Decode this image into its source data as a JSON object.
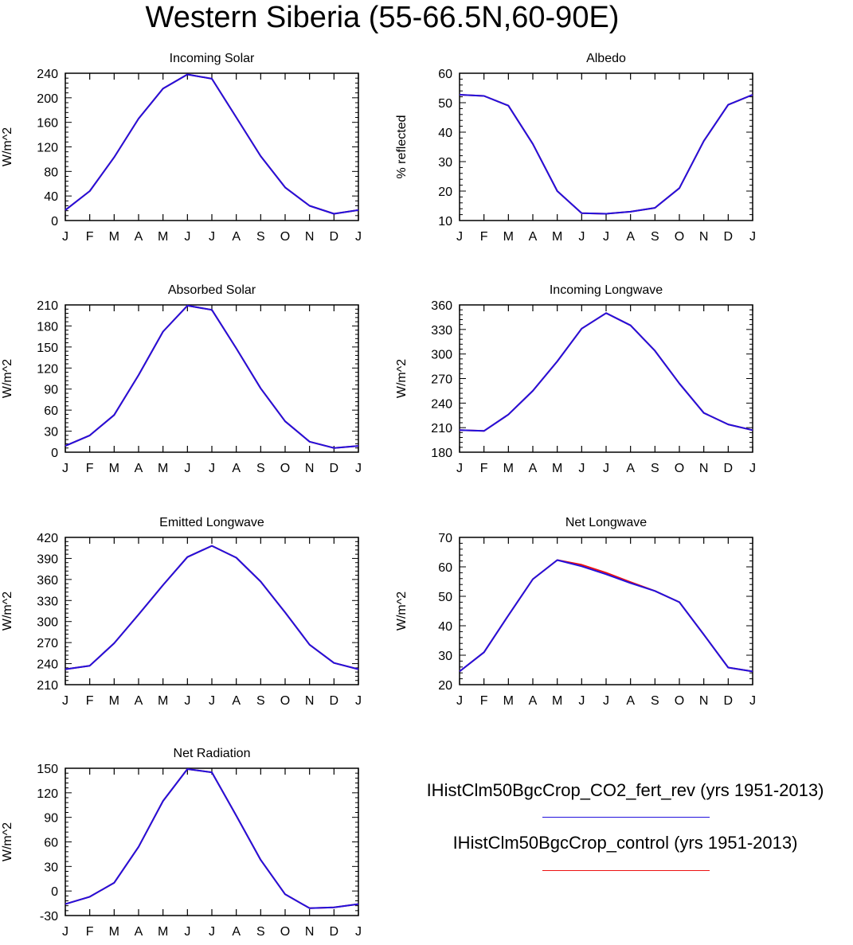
{
  "title": "Western Siberia (55-66.5N,60-90E)",
  "months": [
    "J",
    "F",
    "M",
    "A",
    "M",
    "J",
    "J",
    "A",
    "S",
    "O",
    "N",
    "D",
    "J"
  ],
  "colors": {
    "rev": "#2211dd",
    "control": "#ee1111"
  },
  "legend": [
    {
      "label": "IHistClm50BgcCrop_CO2_fert_rev (yrs 1951-2013)",
      "color": "#2211dd"
    },
    {
      "label": "IHistClm50BgcCrop_control (yrs 1951-2013)",
      "color": "#ee1111"
    }
  ],
  "chart_data": [
    {
      "type": "line",
      "title": "Incoming Solar",
      "ylabel": "W/m^2",
      "ylim": [
        0,
        240
      ],
      "yticks": [
        0,
        40,
        80,
        120,
        160,
        200,
        240
      ],
      "series": [
        {
          "name": "IHistClm50BgcCrop_CO2_fert_rev (yrs 1951-2013)",
          "values": [
            17,
            48,
            103,
            166,
            215,
            238,
            231,
            168,
            105,
            54,
            24,
            11,
            17
          ]
        },
        {
          "name": "IHistClm50BgcCrop_control (yrs 1951-2013)",
          "values": [
            17,
            48,
            103,
            166,
            215,
            238,
            231,
            168,
            105,
            54,
            24,
            11,
            17
          ]
        }
      ]
    },
    {
      "type": "line",
      "title": "Albedo",
      "ylabel": "% reflected",
      "ylim": [
        10,
        60
      ],
      "yticks": [
        10,
        20,
        30,
        40,
        50,
        60
      ],
      "series": [
        {
          "name": "IHistClm50BgcCrop_CO2_fert_rev (yrs 1951-2013)",
          "values": [
            52.7,
            52.3,
            49,
            36,
            20,
            12.5,
            12.3,
            13,
            14.3,
            21,
            37,
            49.3,
            52.7
          ]
        },
        {
          "name": "IHistClm50BgcCrop_control (yrs 1951-2013)",
          "values": [
            52.7,
            52.3,
            49,
            36,
            20,
            12.5,
            12.3,
            13,
            14.3,
            21,
            37,
            49.3,
            52.7
          ]
        }
      ]
    },
    {
      "type": "line",
      "title": "Absorbed Solar",
      "ylabel": "W/m^2",
      "ylim": [
        0,
        210
      ],
      "yticks": [
        0,
        30,
        60,
        90,
        120,
        150,
        180,
        210
      ],
      "series": [
        {
          "name": "IHistClm50BgcCrop_CO2_fert_rev (yrs 1951-2013)",
          "values": [
            9,
            24,
            53,
            110,
            172,
            209,
            203,
            148,
            91,
            44,
            15,
            6,
            9
          ]
        },
        {
          "name": "IHistClm50BgcCrop_control (yrs 1951-2013)",
          "values": [
            9,
            24,
            53,
            110,
            172,
            209,
            203,
            148,
            91,
            44,
            15,
            6,
            9
          ]
        }
      ]
    },
    {
      "type": "line",
      "title": "Incoming Longwave",
      "ylabel": "W/m^2",
      "ylim": [
        180,
        360
      ],
      "yticks": [
        180,
        210,
        240,
        270,
        300,
        330,
        360
      ],
      "series": [
        {
          "name": "IHistClm50BgcCrop_CO2_fert_rev (yrs 1951-2013)",
          "values": [
            207,
            206,
            226,
            255,
            291,
            331,
            350,
            335,
            304,
            264,
            228,
            214,
            207
          ]
        },
        {
          "name": "IHistClm50BgcCrop_control (yrs 1951-2013)",
          "values": [
            207,
            206,
            226,
            255,
            291,
            331,
            350,
            335,
            304,
            264,
            228,
            214,
            207
          ]
        }
      ]
    },
    {
      "type": "line",
      "title": "Emitted Longwave",
      "ylabel": "W/m^2",
      "ylim": [
        210,
        420
      ],
      "yticks": [
        210,
        240,
        270,
        300,
        330,
        360,
        390,
        420
      ],
      "series": [
        {
          "name": "IHistClm50BgcCrop_CO2_fert_rev (yrs 1951-2013)",
          "values": [
            232,
            237,
            269,
            310,
            352,
            392,
            408,
            391,
            357,
            313,
            267,
            241,
            232
          ]
        },
        {
          "name": "IHistClm50BgcCrop_control (yrs 1951-2013)",
          "values": [
            232,
            237,
            269,
            310,
            352,
            392,
            408,
            391,
            357,
            313,
            267,
            241,
            232
          ]
        }
      ]
    },
    {
      "type": "line",
      "title": "Net Longwave",
      "ylabel": "W/m^2",
      "ylim": [
        20,
        70
      ],
      "yticks": [
        20,
        30,
        40,
        50,
        60,
        70
      ],
      "series": [
        {
          "name": "IHistClm50BgcCrop_CO2_fert_rev (yrs 1951-2013)",
          "values": [
            24.5,
            31,
            43.5,
            55.8,
            62.3,
            60.2,
            57.5,
            54.5,
            51.8,
            48,
            37,
            25.8,
            24.5
          ]
        },
        {
          "name": "IHistClm50BgcCrop_control (yrs 1951-2013)",
          "values": [
            24.5,
            31,
            43.5,
            55.8,
            62.3,
            60.7,
            58,
            54.8,
            51.8,
            48,
            37,
            25.8,
            24.5
          ]
        }
      ]
    },
    {
      "type": "line",
      "title": "Net Radiation",
      "ylabel": "W/m^2",
      "ylim": [
        -30,
        150
      ],
      "yticks": [
        -30,
        0,
        30,
        60,
        90,
        120,
        150
      ],
      "series": [
        {
          "name": "IHistClm50BgcCrop_CO2_fert_rev (yrs 1951-2013)",
          "values": [
            -16,
            -7,
            10,
            54,
            110,
            149,
            145,
            92,
            38,
            -4,
            -21,
            -20,
            -16
          ]
        },
        {
          "name": "IHistClm50BgcCrop_control (yrs 1951-2013)",
          "values": [
            -16,
            -7,
            10,
            54,
            110,
            149,
            145,
            92,
            38,
            -4,
            -21,
            -20,
            -16
          ]
        }
      ]
    }
  ]
}
